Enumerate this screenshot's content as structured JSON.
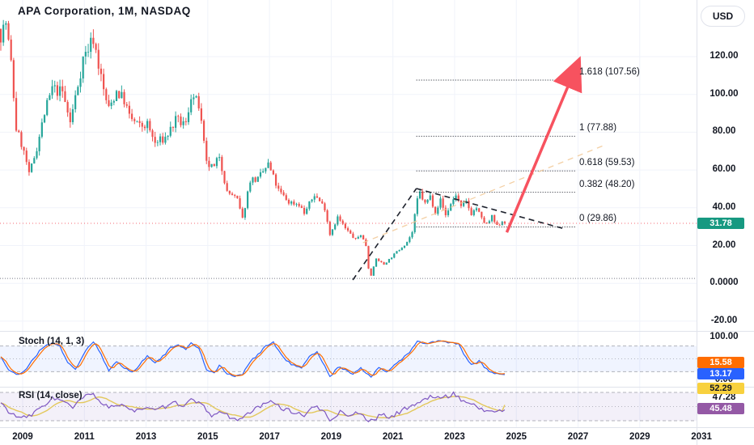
{
  "header": {
    "title": "APA Corporation, 1M, NASDAQ",
    "currency_button": "USD"
  },
  "price_axis": {
    "ticks": [
      {
        "label": "120.00",
        "value": 120
      },
      {
        "label": "100.00",
        "value": 100
      },
      {
        "label": "80.00",
        "value": 80
      },
      {
        "label": "60.00",
        "value": 60
      },
      {
        "label": "40.00",
        "value": 40
      },
      {
        "label": "20.00",
        "value": 20
      },
      {
        "label": "0.0000",
        "value": 0
      },
      {
        "label": "-20.00",
        "value": -20
      }
    ],
    "last_price": "31.78",
    "last_price_value": 31.78
  },
  "time_axis": {
    "years": [
      "2009",
      "2011",
      "2013",
      "2015",
      "2017",
      "2019",
      "2021",
      "2023",
      "2025",
      "2027",
      "2029",
      "2031"
    ]
  },
  "fib": {
    "levels": [
      {
        "label": "1.618 (107.56)",
        "price": 107.56
      },
      {
        "label": "1 (77.88)",
        "price": 77.88
      },
      {
        "label": "0.618 (59.53)",
        "price": 59.53
      },
      {
        "label": "0.382 (48.20)",
        "price": 48.2
      },
      {
        "label": "0 (29.86)",
        "price": 29.86
      }
    ]
  },
  "indicators": {
    "stoch": {
      "label": "Stoch (14, 1, 3)",
      "k_value": "13.17",
      "d_value": "15.58",
      "axis_top": "100.00",
      "axis_bottom": "0.00",
      "upper_band": 80,
      "lower_band": 20
    },
    "rsi": {
      "label": "RSI (14, close)",
      "rsi_value": "45.48",
      "ma_value": "52.29",
      "mid_value": "47.28",
      "upper_band": 70,
      "lower_band": 30
    }
  },
  "colors": {
    "candle_up": "#26a69a",
    "candle_down": "#ef5350",
    "price_line": "#f23645",
    "price_badge_bg": "#179981",
    "stoch_k": "#2962ff",
    "stoch_d": "#ff6d00",
    "stoch_k_badge": "#2962ff",
    "stoch_d_badge": "#ff6d00",
    "rsi_line": "#7e57c2",
    "rsi_ma_line": "#e3c85c",
    "rsi_badge": "#9459a5",
    "rsi_ma_badge": "#f8d13e",
    "arrow": "#f7525f",
    "trendline": "#1e222d",
    "channel_line": "#f2c896",
    "fib_line": "#131722",
    "grid": "#f0f3fa",
    "separator": "#e0e3eb",
    "band_line": "#787b86",
    "stoch_fill": "rgba(41,98,255,0.07)",
    "rsi_fill": "rgba(126,87,194,0.09)"
  },
  "chart_data": {
    "type": "candlestick",
    "title": "APA Corporation, 1M, NASDAQ",
    "symbol": "APA Corporation",
    "timeframe": "1M",
    "exchange": "NASDAQ",
    "currency": "USD",
    "price_range_visible": [
      -20,
      120
    ],
    "x_range_years": [
      2008.3,
      2031.6
    ],
    "anchor_format": "[month_index, close]; month_index 0 = Apr 2008, monthly bars through mid-2024",
    "price_anchors": [
      [
        0,
        132
      ],
      [
        2,
        138
      ],
      [
        4,
        116
      ],
      [
        6,
        82
      ],
      [
        8,
        74
      ],
      [
        10,
        64
      ],
      [
        11,
        57
      ],
      [
        14,
        72
      ],
      [
        17,
        90
      ],
      [
        20,
        103
      ],
      [
        24,
        101
      ],
      [
        27,
        85
      ],
      [
        32,
        119
      ],
      [
        36,
        130
      ],
      [
        40,
        102
      ],
      [
        42,
        92
      ],
      [
        45,
        102
      ],
      [
        48,
        97
      ],
      [
        50,
        88
      ],
      [
        54,
        83
      ],
      [
        57,
        84
      ],
      [
        60,
        74
      ],
      [
        64,
        77
      ],
      [
        68,
        86
      ],
      [
        72,
        84
      ],
      [
        74,
        100
      ],
      [
        77,
        94
      ],
      [
        80,
        63
      ],
      [
        83,
        61
      ],
      [
        85,
        68
      ],
      [
        88,
        48
      ],
      [
        90,
        47
      ],
      [
        92,
        44
      ],
      [
        94,
        34
      ],
      [
        97,
        55
      ],
      [
        100,
        55
      ],
      [
        104,
        63
      ],
      [
        108,
        49
      ],
      [
        112,
        43
      ],
      [
        116,
        42
      ],
      [
        118,
        37
      ],
      [
        122,
        47
      ],
      [
        126,
        40
      ],
      [
        128,
        26
      ],
      [
        131,
        35
      ],
      [
        134,
        29
      ],
      [
        138,
        23
      ],
      [
        140,
        26
      ],
      [
        142,
        20
      ],
      [
        143,
        8
      ],
      [
        144,
        4.2
      ],
      [
        146,
        13
      ],
      [
        149,
        10
      ],
      [
        152,
        14
      ],
      [
        155,
        18
      ],
      [
        158,
        22
      ],
      [
        160,
        27
      ],
      [
        162,
        44
      ],
      [
        163,
        48
      ],
      [
        165,
        42
      ],
      [
        167,
        46
      ],
      [
        169,
        38
      ],
      [
        171,
        44
      ],
      [
        173,
        36
      ],
      [
        175,
        42
      ],
      [
        177,
        47
      ],
      [
        179,
        40
      ],
      [
        181,
        43
      ],
      [
        183,
        37
      ],
      [
        185,
        40
      ],
      [
        187,
        34
      ],
      [
        189,
        31
      ],
      [
        191,
        35
      ],
      [
        193,
        30
      ],
      [
        195,
        33
      ],
      [
        196,
        31.78
      ]
    ],
    "stoch_anchors": [
      [
        0,
        55
      ],
      [
        3,
        25
      ],
      [
        6,
        12
      ],
      [
        9,
        20
      ],
      [
        12,
        45
      ],
      [
        16,
        75
      ],
      [
        20,
        88
      ],
      [
        23,
        80
      ],
      [
        26,
        40
      ],
      [
        29,
        25
      ],
      [
        33,
        70
      ],
      [
        36,
        90
      ],
      [
        39,
        60
      ],
      [
        42,
        20
      ],
      [
        45,
        45
      ],
      [
        48,
        30
      ],
      [
        51,
        18
      ],
      [
        54,
        35
      ],
      [
        57,
        60
      ],
      [
        60,
        40
      ],
      [
        63,
        55
      ],
      [
        66,
        75
      ],
      [
        69,
        85
      ],
      [
        72,
        70
      ],
      [
        74,
        88
      ],
      [
        77,
        75
      ],
      [
        80,
        25
      ],
      [
        83,
        18
      ],
      [
        85,
        35
      ],
      [
        88,
        15
      ],
      [
        91,
        10
      ],
      [
        94,
        12
      ],
      [
        97,
        45
      ],
      [
        100,
        60
      ],
      [
        103,
        80
      ],
      [
        106,
        88
      ],
      [
        108,
        70
      ],
      [
        111,
        45
      ],
      [
        114,
        35
      ],
      [
        117,
        28
      ],
      [
        120,
        55
      ],
      [
        123,
        65
      ],
      [
        126,
        35
      ],
      [
        128,
        8
      ],
      [
        131,
        30
      ],
      [
        134,
        25
      ],
      [
        137,
        15
      ],
      [
        140,
        30
      ],
      [
        142,
        18
      ],
      [
        144,
        5
      ],
      [
        147,
        30
      ],
      [
        150,
        20
      ],
      [
        153,
        35
      ],
      [
        156,
        50
      ],
      [
        159,
        65
      ],
      [
        162,
        90
      ],
      [
        166,
        85
      ],
      [
        170,
        92
      ],
      [
        174,
        88
      ],
      [
        178,
        85
      ],
      [
        180,
        60
      ],
      [
        183,
        35
      ],
      [
        186,
        45
      ],
      [
        189,
        25
      ],
      [
        192,
        15
      ],
      [
        196,
        13.17
      ]
    ],
    "rsi_anchors": [
      [
        0,
        55
      ],
      [
        4,
        40
      ],
      [
        8,
        33
      ],
      [
        12,
        38
      ],
      [
        16,
        50
      ],
      [
        20,
        62
      ],
      [
        24,
        58
      ],
      [
        28,
        48
      ],
      [
        32,
        63
      ],
      [
        36,
        68
      ],
      [
        40,
        52
      ],
      [
        44,
        48
      ],
      [
        48,
        52
      ],
      [
        52,
        45
      ],
      [
        56,
        48
      ],
      [
        60,
        44
      ],
      [
        64,
        50
      ],
      [
        68,
        55
      ],
      [
        72,
        52
      ],
      [
        74,
        60
      ],
      [
        78,
        52
      ],
      [
        82,
        38
      ],
      [
        86,
        42
      ],
      [
        90,
        34
      ],
      [
        94,
        32
      ],
      [
        98,
        45
      ],
      [
        102,
        52
      ],
      [
        106,
        58
      ],
      [
        110,
        46
      ],
      [
        114,
        42
      ],
      [
        118,
        38
      ],
      [
        122,
        50
      ],
      [
        126,
        42
      ],
      [
        128,
        30
      ],
      [
        132,
        42
      ],
      [
        136,
        38
      ],
      [
        140,
        42
      ],
      [
        143,
        28
      ],
      [
        148,
        38
      ],
      [
        152,
        35
      ],
      [
        156,
        45
      ],
      [
        160,
        52
      ],
      [
        164,
        58
      ],
      [
        168,
        65
      ],
      [
        172,
        62
      ],
      [
        176,
        68
      ],
      [
        180,
        58
      ],
      [
        184,
        52
      ],
      [
        188,
        45
      ],
      [
        192,
        42
      ],
      [
        196,
        45.48
      ]
    ],
    "stoch_last": {
      "k": 13.17,
      "d": 15.58
    },
    "rsi_last": {
      "rsi": 45.48,
      "ma": 52.29
    },
    "drawings": {
      "fib_extension": {
        "level_0_price": 29.86,
        "level_1_price": 77.88,
        "levels": [
          0,
          0.382,
          0.618,
          1,
          1.618
        ],
        "x_start_year": 2021.76,
        "x_end_year": 2026.9
      },
      "trendline_up": {
        "x1": 2019.7,
        "p1": 1.8,
        "x2": 2021.76,
        "p2": 50.2
      },
      "trendline_down": {
        "x1": 2021.76,
        "p1": 50.2,
        "x2": 2026.57,
        "p2": 28.8
      },
      "channel_line": {
        "x1": 2020.03,
        "p1": 21.5,
        "x2": 2027.82,
        "p2": 72.9
      },
      "arrow": {
        "x1": 2024.69,
        "p1": 27.0,
        "x2": 2026.73,
        "p2": 106.5
      },
      "horizontal_line_price": 2.6
    }
  }
}
